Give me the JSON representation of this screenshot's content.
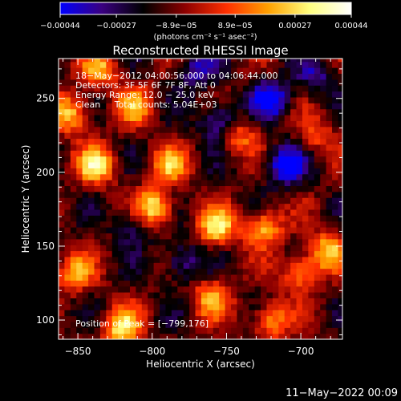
{
  "chart_data": {
    "type": "heatmap",
    "title": "Reconstructed RHESSI Image",
    "xlabel": "Heliocentric X (arcsec)",
    "ylabel": "Heliocentric Y (arcsec)",
    "xlim": [
      -863,
      -672
    ],
    "ylim": [
      87,
      277
    ],
    "x_ticks": [
      -850,
      -800,
      -750,
      -700
    ],
    "x_tick_labels": [
      "−850",
      "−800",
      "−750",
      "−700"
    ],
    "y_ticks": [
      100,
      150,
      200,
      250
    ],
    "y_tick_labels": [
      "100",
      "150",
      "200",
      "250"
    ],
    "colorbar": {
      "range": [
        -0.00044,
        0.00044
      ],
      "ticks": [
        -0.00044,
        -0.00027,
        -8.9e-05,
        8.9e-05,
        0.00027,
        0.00044
      ],
      "tick_labels": [
        "−0.00044",
        "−0.00027",
        "−8.9e−05",
        "8.9e−05",
        "0.00027",
        "0.00044"
      ],
      "units_label": "(photons cm⁻² s⁻¹ asec⁻²)",
      "colormap": [
        "#0000ff",
        "#3a0080",
        "#000000",
        "#8c0000",
        "#ff3000",
        "#ffa000",
        "#ffff80",
        "#ffffff"
      ]
    },
    "annotations": [
      "18−May−2012 04:00:56.000 to 04:06:44.000",
      "Detectors: 3F 5F 6F 7F 8F, Att 0",
      "Energy Range: 12.0 − 25.0 keV",
      "Clean     Total counts: 5.04E+03"
    ],
    "peak_label": "Position of Peak = [−799,176]",
    "peak": [
      -799,
      176
    ],
    "hot_spots": [
      {
        "x": -855,
        "y": 240,
        "v": 0.00038
      },
      {
        "x": -838,
        "y": 205,
        "v": 0.0004
      },
      {
        "x": -799,
        "y": 176,
        "v": 0.00044
      },
      {
        "x": -788,
        "y": 205,
        "v": 0.0003
      },
      {
        "x": -756,
        "y": 163,
        "v": 0.0004
      },
      {
        "x": -742,
        "y": 225,
        "v": 0.00025
      },
      {
        "x": -725,
        "y": 163,
        "v": 0.00035
      },
      {
        "x": -700,
        "y": 132,
        "v": 0.0003
      },
      {
        "x": -682,
        "y": 147,
        "v": 0.00035
      },
      {
        "x": -690,
        "y": 225,
        "v": 0.0002
      },
      {
        "x": -852,
        "y": 132,
        "v": 0.0003
      },
      {
        "x": -820,
        "y": 95,
        "v": 0.0004
      },
      {
        "x": -760,
        "y": 115,
        "v": 0.0003
      },
      {
        "x": -720,
        "y": 100,
        "v": 0.0003
      },
      {
        "x": -835,
        "y": 270,
        "v": 0.0003
      },
      {
        "x": -812,
        "y": 245,
        "v": 0.00028
      }
    ],
    "cold_spots": [
      {
        "x": -720,
        "y": 250,
        "v": -0.00035
      },
      {
        "x": -710,
        "y": 205,
        "v": -0.00038
      },
      {
        "x": -770,
        "y": 270,
        "v": -0.00025
      },
      {
        "x": -755,
        "y": 235,
        "v": -0.0003
      },
      {
        "x": -780,
        "y": 140,
        "v": -0.00025
      },
      {
        "x": -690,
        "y": 265,
        "v": -0.0002
      },
      {
        "x": -812,
        "y": 165,
        "v": -0.0002
      }
    ]
  },
  "footer": {
    "date_stamp": "11−May−2022 00:09"
  }
}
